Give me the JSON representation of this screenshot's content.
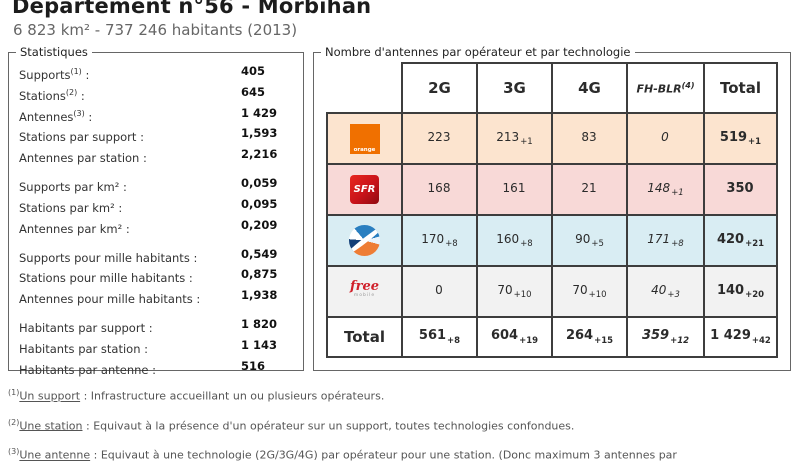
{
  "page": {
    "title": "Département n°56 - Morbihan",
    "subtitle": "6 823 km² - 737 246 habitants (2013)"
  },
  "stats": {
    "legend": "Statistiques",
    "colon": " :",
    "groups": [
      [
        {
          "label": "Supports",
          "sup": "(1)",
          "value": "405"
        },
        {
          "label": "Stations",
          "sup": "(2)",
          "value": "645"
        },
        {
          "label": "Antennes",
          "sup": "(3)",
          "value": "1 429"
        },
        {
          "label": "Stations par support",
          "sup": "",
          "value": "1,593"
        },
        {
          "label": "Antennes par station",
          "sup": "",
          "value": "2,216"
        }
      ],
      [
        {
          "label": "Supports par km²",
          "sup": "",
          "value": "0,059"
        },
        {
          "label": "Stations par km²",
          "sup": "",
          "value": "0,095"
        },
        {
          "label": "Antennes par km²",
          "sup": "",
          "value": "0,209"
        }
      ],
      [
        {
          "label": "Supports pour mille habitants",
          "sup": "",
          "value": "0,549"
        },
        {
          "label": "Stations pour mille habitants",
          "sup": "",
          "value": "0,875"
        },
        {
          "label": "Antennes pour mille habitants",
          "sup": "",
          "value": "1,938"
        }
      ],
      [
        {
          "label": "Habitants par support",
          "sup": "",
          "value": "1 820"
        },
        {
          "label": "Habitants par station",
          "sup": "",
          "value": "1 143"
        },
        {
          "label": "Habitants par antenne",
          "sup": "",
          "value": "516"
        }
      ]
    ]
  },
  "antenna_table": {
    "legend": "Nombre d'antennes par opérateur et par technologie",
    "columns": [
      "2G",
      "3G",
      "4G",
      "FH-BLR",
      "Total"
    ],
    "fh_sup": "(4)",
    "rows": [
      {
        "operator": "Orange",
        "cells": [
          {
            "v": "223",
            "d": ""
          },
          {
            "v": "213",
            "d": "+1"
          },
          {
            "v": "83",
            "d": ""
          },
          {
            "v": "0",
            "d": ""
          },
          {
            "v": "519",
            "d": "+1"
          }
        ]
      },
      {
        "operator": "SFR",
        "cells": [
          {
            "v": "168",
            "d": ""
          },
          {
            "v": "161",
            "d": ""
          },
          {
            "v": "21",
            "d": ""
          },
          {
            "v": "148",
            "d": "+1"
          },
          {
            "v": "350",
            "d": ""
          }
        ]
      },
      {
        "operator": "Bouygues Telecom",
        "cells": [
          {
            "v": "170",
            "d": "+8"
          },
          {
            "v": "160",
            "d": "+8"
          },
          {
            "v": "90",
            "d": "+5"
          },
          {
            "v": "171",
            "d": "+8"
          },
          {
            "v": "420",
            "d": "+21"
          }
        ]
      },
      {
        "operator": "Free Mobile",
        "cells": [
          {
            "v": "0",
            "d": ""
          },
          {
            "v": "70",
            "d": "+10"
          },
          {
            "v": "70",
            "d": "+10"
          },
          {
            "v": "40",
            "d": "+3"
          },
          {
            "v": "140",
            "d": "+20"
          }
        ]
      }
    ],
    "total": {
      "label": "Total",
      "cells": [
        {
          "v": "561",
          "d": "+8"
        },
        {
          "v": "604",
          "d": "+19"
        },
        {
          "v": "264",
          "d": "+15"
        },
        {
          "v": "359",
          "d": "+12"
        },
        {
          "v": "1 429",
          "d": "+42"
        }
      ]
    }
  },
  "logos": {
    "orange_text": "orange",
    "sfr_text": "SFR",
    "free_line1": "free",
    "free_line2": "mobile"
  },
  "colors": {
    "orange_brand": "#f07000",
    "sfr_red": "#c8131a",
    "free_red": "#d0202a",
    "bouygues_blue": "#2a7fc0",
    "bouygues_orange": "#ee7d35",
    "row_orange_bg": "#fce4cf",
    "row_sfr_bg": "#f8d9d7",
    "row_bouygues_bg": "#d9edf3",
    "row_free_bg": "#f2f2f2"
  },
  "footnotes": [
    {
      "sup": "(1)",
      "term": "Un support",
      "text": " : Infrastructure accueillant un ou plusieurs opérateurs."
    },
    {
      "sup": "(2)",
      "term": "Une station",
      "text": " : Equivaut à la présence d'un opérateur sur un support, toutes technologies confondues."
    },
    {
      "sup": "(3)",
      "term": "Une antenne",
      "text": " : Equivaut à une technologie (2G/3G/4G) par opérateur pour une station. (Donc maximum 3 antennes par"
    }
  ]
}
